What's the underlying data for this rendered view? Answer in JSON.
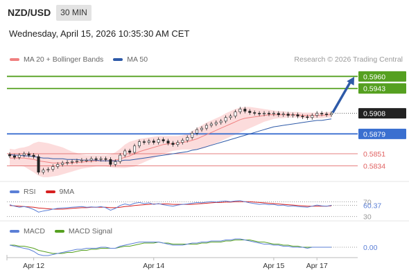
{
  "header": {
    "pair": "NZD/USD",
    "timeframe": "30 MIN"
  },
  "datetime": "Wednesday, April 15, 2026 10:35:30 AM CET",
  "credit": "Research © 2026 Trading Central",
  "chart_data": {
    "type": "line",
    "main": {
      "legend": [
        {
          "name": "MA 20 + Bollinger Bands",
          "color": "#f08080"
        },
        {
          "name": "MA 50",
          "color": "#2e5aa8"
        }
      ],
      "ylim": [
        0.5812,
        0.5973
      ],
      "current_price": {
        "value": "0.5908",
        "color": "#222222"
      },
      "levels": [
        {
          "value": "0.5960",
          "color": "#55a020",
          "style": "resistance"
        },
        {
          "value": "0.5943",
          "color": "#55a020",
          "style": "resistance"
        },
        {
          "value": "0.5879",
          "color": "#3a6fd0",
          "style": "pivot"
        },
        {
          "value": "0.5851",
          "color": "#e06060",
          "style": "support"
        },
        {
          "value": "0.5834",
          "color": "#e06060",
          "style": "support"
        }
      ],
      "closes": [
        0.5848,
        0.5846,
        0.5849,
        0.5851,
        0.5849,
        0.5847,
        0.5825,
        0.5828,
        0.5829,
        0.5833,
        0.5836,
        0.5838,
        0.5839,
        0.584,
        0.5841,
        0.5842,
        0.5842,
        0.5844,
        0.5843,
        0.5844,
        0.5843,
        0.5836,
        0.584,
        0.5849,
        0.5855,
        0.5853,
        0.5862,
        0.5868,
        0.5867,
        0.5869,
        0.5867,
        0.5871,
        0.5869,
        0.5866,
        0.5864,
        0.5867,
        0.587,
        0.5874,
        0.588,
        0.5885,
        0.5887,
        0.5891,
        0.5893,
        0.5895,
        0.5897,
        0.5902,
        0.5904,
        0.591,
        0.5914,
        0.5911,
        0.5909,
        0.5908,
        0.5907,
        0.5908,
        0.5907,
        0.5908,
        0.5906,
        0.5907,
        0.5905,
        0.5906,
        0.5904,
        0.5903,
        0.5902,
        0.5905,
        0.5908,
        0.5907,
        0.5906,
        0.5908
      ],
      "ma20": [
        0.5845,
        0.5845,
        0.5845,
        0.5845,
        0.5844,
        0.5843,
        0.5841,
        0.584,
        0.5839,
        0.5838,
        0.5838,
        0.5838,
        0.5838,
        0.5838,
        0.5839,
        0.5839,
        0.584,
        0.584,
        0.5841,
        0.5841,
        0.5841,
        0.5841,
        0.5842,
        0.5844,
        0.5846,
        0.5848,
        0.5851,
        0.5854,
        0.5856,
        0.5858,
        0.586,
        0.5862,
        0.5864,
        0.5865,
        0.5865,
        0.5866,
        0.5867,
        0.5868,
        0.587,
        0.5872,
        0.5875,
        0.5878,
        0.5881,
        0.5884,
        0.5887,
        0.589,
        0.5893,
        0.5896,
        0.5899,
        0.5901,
        0.5902,
        0.5903,
        0.5904,
        0.5905,
        0.5906,
        0.5906,
        0.5906,
        0.5906,
        0.5906,
        0.5906,
        0.5906,
        0.5905,
        0.5905,
        0.5905,
        0.5905,
        0.5905,
        0.5906,
        0.5906
      ],
      "bb_upper": [
        0.5858,
        0.5857,
        0.5859,
        0.586,
        0.5862,
        0.5866,
        0.5868,
        0.5867,
        0.5866,
        0.5864,
        0.5862,
        0.586,
        0.5857,
        0.5854,
        0.5852,
        0.585,
        0.5849,
        0.5849,
        0.5849,
        0.5849,
        0.5849,
        0.585,
        0.5853,
        0.5858,
        0.5864,
        0.5868,
        0.587,
        0.5872,
        0.5873,
        0.5874,
        0.5875,
        0.5876,
        0.5876,
        0.5876,
        0.5876,
        0.5876,
        0.5877,
        0.5879,
        0.5883,
        0.5887,
        0.5891,
        0.5895,
        0.5898,
        0.5901,
        0.5904,
        0.5908,
        0.5911,
        0.5914,
        0.5916,
        0.5917,
        0.5917,
        0.5916,
        0.5915,
        0.5914,
        0.5913,
        0.5912,
        0.5911,
        0.5911,
        0.591,
        0.591,
        0.591,
        0.5909,
        0.5909,
        0.5909,
        0.5909,
        0.5909,
        0.591,
        0.591
      ],
      "bb_lower": [
        0.5834,
        0.5834,
        0.5834,
        0.5833,
        0.5829,
        0.5825,
        0.582,
        0.5818,
        0.5818,
        0.5819,
        0.582,
        0.5822,
        0.5824,
        0.5826,
        0.5828,
        0.583,
        0.5831,
        0.5832,
        0.5833,
        0.5833,
        0.5833,
        0.5832,
        0.5831,
        0.5831,
        0.5831,
        0.5832,
        0.5833,
        0.5836,
        0.5839,
        0.5842,
        0.5845,
        0.5848,
        0.5851,
        0.5853,
        0.5855,
        0.5856,
        0.5857,
        0.5857,
        0.5857,
        0.5857,
        0.5858,
        0.586,
        0.5863,
        0.5866,
        0.5869,
        0.5872,
        0.5875,
        0.5878,
        0.5881,
        0.5884,
        0.5887,
        0.589,
        0.5893,
        0.5896,
        0.5898,
        0.59,
        0.5901,
        0.5901,
        0.5902,
        0.5902,
        0.5902,
        0.5901,
        0.5901,
        0.5901,
        0.5901,
        0.5901,
        0.5902,
        0.5902
      ],
      "ma50": [
        0.585,
        0.5849,
        0.5849,
        0.5848,
        0.5848,
        0.5847,
        0.5846,
        0.5845,
        0.5845,
        0.5844,
        0.5844,
        0.5844,
        0.5843,
        0.5843,
        0.5843,
        0.5842,
        0.5842,
        0.5842,
        0.5842,
        0.5841,
        0.5841,
        0.5841,
        0.5841,
        0.5841,
        0.5842,
        0.5842,
        0.5843,
        0.5844,
        0.5845,
        0.5846,
        0.5847,
        0.5848,
        0.5849,
        0.585,
        0.5851,
        0.5852,
        0.5853,
        0.5854,
        0.5856,
        0.5857,
        0.5859,
        0.5861,
        0.5863,
        0.5865,
        0.5867,
        0.5869,
        0.5871,
        0.5873,
        0.5875,
        0.5877,
        0.5879,
        0.5881,
        0.5883,
        0.5885,
        0.5887,
        0.5889,
        0.589,
        0.5891,
        0.5892,
        0.5893,
        0.5894,
        0.5895,
        0.5896,
        0.5897,
        0.5898,
        0.5898,
        0.5899,
        0.59
      ],
      "projection": {
        "from": 0.5908,
        "to": 0.596,
        "color": "#2e5aa8"
      }
    },
    "rsi": {
      "legend": [
        {
          "name": "RSI",
          "color": "#5b7fd6"
        },
        {
          "name": "9MA",
          "color": "#d62020"
        }
      ],
      "ylim": [
        20,
        80
      ],
      "levels": [
        "70",
        "30"
      ],
      "current": "60.37",
      "values": [
        62,
        58,
        55,
        57,
        54,
        49,
        42,
        45,
        47,
        50,
        52,
        53,
        54,
        55,
        56,
        57,
        55,
        56,
        55,
        57,
        54,
        47,
        52,
        60,
        64,
        61,
        66,
        68,
        65,
        67,
        63,
        65,
        62,
        60,
        58,
        61,
        63,
        64,
        66,
        68,
        67,
        69,
        70,
        69,
        71,
        72,
        70,
        72,
        73,
        70,
        67,
        65,
        63,
        64,
        62,
        63,
        60,
        61,
        58,
        59,
        57,
        56,
        55,
        58,
        61,
        59,
        58,
        60.37
      ],
      "ma9": [
        60,
        59,
        58,
        57,
        56,
        55,
        53,
        52,
        51,
        50,
        50,
        50,
        51,
        52,
        53,
        54,
        54,
        55,
        55,
        55,
        55,
        54,
        54,
        55,
        57,
        58,
        60,
        61,
        62,
        63,
        64,
        64,
        64,
        64,
        63,
        63,
        63,
        63,
        63,
        64,
        65,
        66,
        67,
        68,
        68,
        69,
        69,
        70,
        70,
        70,
        70,
        69,
        68,
        67,
        66,
        65,
        64,
        63,
        62,
        61,
        60,
        59,
        58,
        58,
        58,
        58,
        58,
        59
      ]
    },
    "macd": {
      "legend": [
        {
          "name": "MACD",
          "color": "#5b7fd6"
        },
        {
          "name": "MACD Signal",
          "color": "#55a020"
        }
      ],
      "ylim": [
        -0.001,
        0.001
      ],
      "current": "0.00",
      "macd": [
        0.0002,
        0.0001,
        0.0,
        -0.0001,
        -0.0002,
        -0.0004,
        -0.0007,
        -0.0008,
        -0.0008,
        -0.0007,
        -0.0006,
        -0.0005,
        -0.0004,
        -0.0003,
        -0.0002,
        -0.0002,
        -0.0001,
        -0.0001,
        -0.0001,
        0.0,
        0.0,
        -0.0001,
        -0.0001,
        0.0001,
        0.0002,
        0.0003,
        0.0004,
        0.0005,
        0.0005,
        0.0005,
        0.0005,
        0.0005,
        0.0004,
        0.0003,
        0.0002,
        0.0002,
        0.0002,
        0.0003,
        0.0004,
        0.0004,
        0.0005,
        0.0005,
        0.0006,
        0.0006,
        0.0006,
        0.0007,
        0.0007,
        0.0008,
        0.0008,
        0.0007,
        0.0006,
        0.0005,
        0.0004,
        0.0003,
        0.0003,
        0.0002,
        0.0002,
        0.0001,
        0.0001,
        0.0,
        0.0,
        0.0,
        -0.0001,
        0.0,
        0.0,
        0.0,
        0.0,
        0.0
      ],
      "signal": [
        0.0002,
        0.0002,
        0.0001,
        0.0001,
        0.0,
        -0.0001,
        -0.0003,
        -0.0004,
        -0.0005,
        -0.0006,
        -0.0006,
        -0.0006,
        -0.0005,
        -0.0005,
        -0.0004,
        -0.0003,
        -0.0003,
        -0.0002,
        -0.0002,
        -0.0001,
        -0.0001,
        -0.0001,
        -0.0001,
        0.0,
        0.0001,
        0.0001,
        0.0002,
        0.0003,
        0.0004,
        0.0004,
        0.0004,
        0.0005,
        0.0004,
        0.0004,
        0.0003,
        0.0003,
        0.0003,
        0.0003,
        0.0003,
        0.0003,
        0.0004,
        0.0004,
        0.0005,
        0.0005,
        0.0005,
        0.0006,
        0.0006,
        0.0007,
        0.0007,
        0.0007,
        0.0007,
        0.0006,
        0.0005,
        0.0005,
        0.0004,
        0.0003,
        0.0003,
        0.0002,
        0.0002,
        0.0001,
        0.0001,
        0.0,
        0.0,
        0.0,
        0.0,
        0.0,
        0.0,
        0.0
      ]
    },
    "x_labels": [
      {
        "label": "Apr 12",
        "index": 5
      },
      {
        "label": "Apr 14",
        "index": 30
      },
      {
        "label": "Apr 15",
        "index": 55
      },
      {
        "label": "Apr 17",
        "index": 64
      }
    ]
  }
}
